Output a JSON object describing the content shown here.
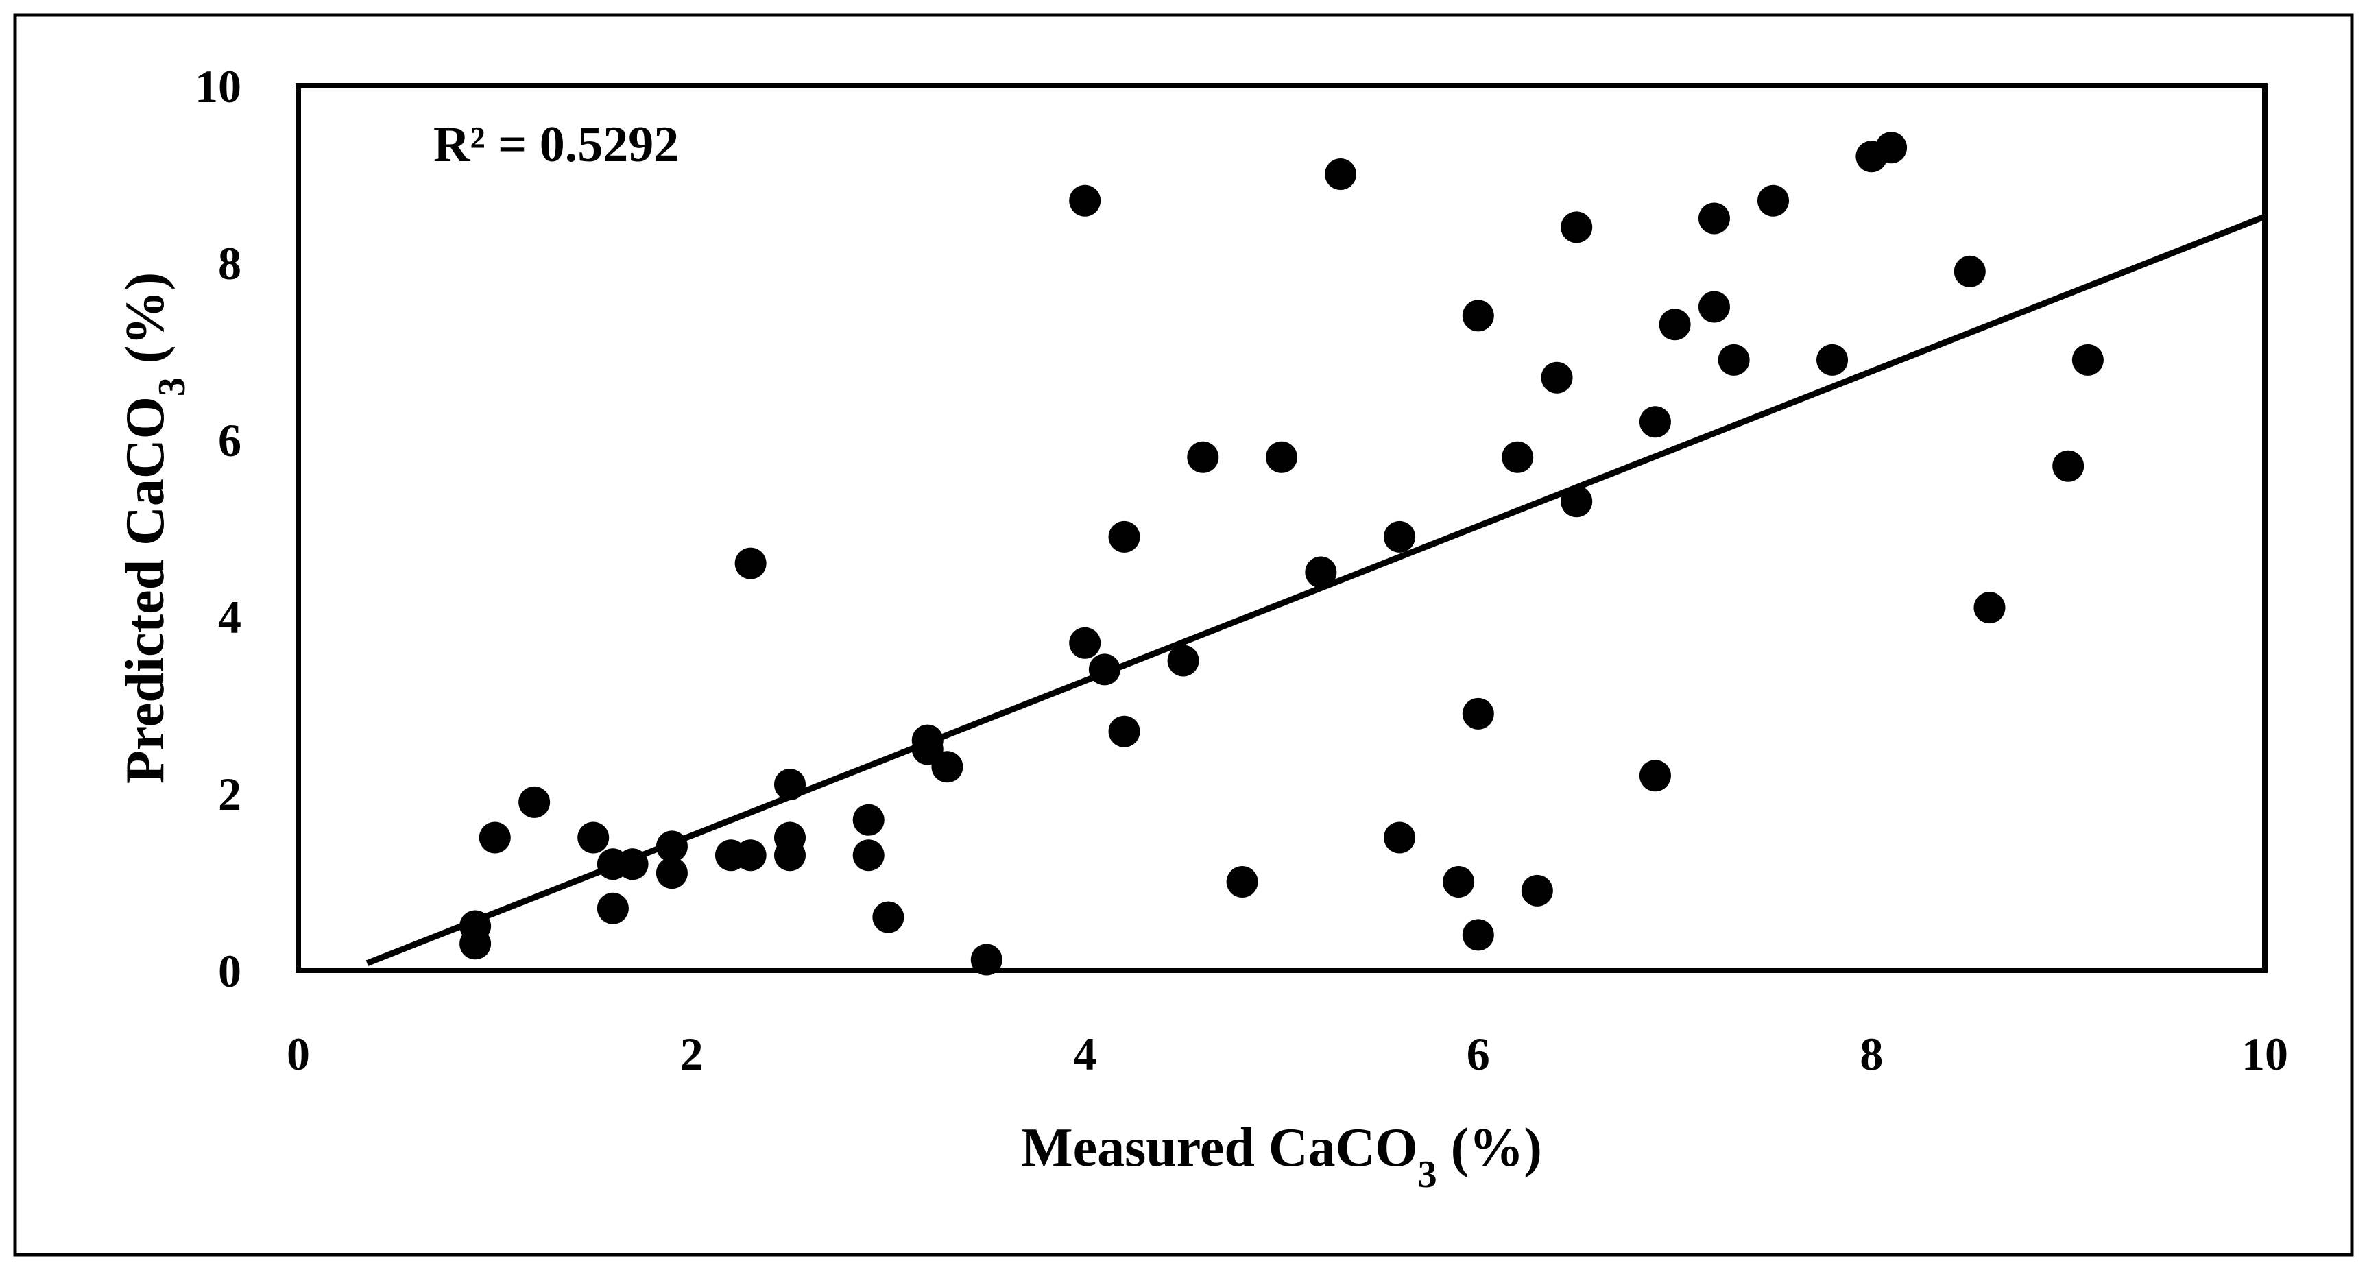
{
  "chart_data": {
    "type": "scatter",
    "title": "",
    "xlabel": {
      "prefix": "Measured CaCO",
      "subscript": "3",
      "suffix": " (%)"
    },
    "ylabel": {
      "prefix": "Predicted CaCO",
      "subscript": "3",
      "suffix": " (%)"
    },
    "xlim": [
      0,
      10
    ],
    "ylim": [
      0,
      10
    ],
    "x_ticks": [
      "0",
      "2",
      "4",
      "6",
      "8",
      "10"
    ],
    "y_ticks": [
      "0",
      "2",
      "4",
      "6",
      "8",
      "10"
    ],
    "grid": false,
    "annotation": "R² = 0.5292",
    "trendline": {
      "x1": 0.35,
      "y1": 0.08,
      "x2": 10,
      "y2": 8.52
    },
    "marker_color": "#000000",
    "points": [
      {
        "x": 0.9,
        "y": 0.5
      },
      {
        "x": 0.9,
        "y": 0.3
      },
      {
        "x": 1.0,
        "y": 1.5
      },
      {
        "x": 1.2,
        "y": 1.9
      },
      {
        "x": 1.5,
        "y": 1.5
      },
      {
        "x": 1.6,
        "y": 1.2
      },
      {
        "x": 1.7,
        "y": 1.2
      },
      {
        "x": 1.6,
        "y": 0.7
      },
      {
        "x": 1.9,
        "y": 1.4
      },
      {
        "x": 1.9,
        "y": 1.1
      },
      {
        "x": 2.2,
        "y": 1.3
      },
      {
        "x": 2.3,
        "y": 1.3
      },
      {
        "x": 2.3,
        "y": 4.6
      },
      {
        "x": 2.5,
        "y": 2.1
      },
      {
        "x": 2.5,
        "y": 1.5
      },
      {
        "x": 2.5,
        "y": 1.3
      },
      {
        "x": 2.9,
        "y": 1.7
      },
      {
        "x": 2.9,
        "y": 1.3
      },
      {
        "x": 3.0,
        "y": 0.6
      },
      {
        "x": 3.2,
        "y": 2.6
      },
      {
        "x": 3.2,
        "y": 2.5
      },
      {
        "x": 3.3,
        "y": 2.3
      },
      {
        "x": 3.5,
        "y": 0.12
      },
      {
        "x": 4.0,
        "y": 8.7
      },
      {
        "x": 4.0,
        "y": 3.7
      },
      {
        "x": 4.1,
        "y": 3.4
      },
      {
        "x": 4.2,
        "y": 4.9
      },
      {
        "x": 4.2,
        "y": 2.7
      },
      {
        "x": 4.5,
        "y": 3.5
      },
      {
        "x": 4.6,
        "y": 5.8
      },
      {
        "x": 4.8,
        "y": 1.0
      },
      {
        "x": 5.0,
        "y": 5.8
      },
      {
        "x": 5.2,
        "y": 4.5
      },
      {
        "x": 5.3,
        "y": 9.0
      },
      {
        "x": 5.6,
        "y": 4.9
      },
      {
        "x": 5.6,
        "y": 1.5
      },
      {
        "x": 5.9,
        "y": 1.0
      },
      {
        "x": 6.0,
        "y": 7.4
      },
      {
        "x": 6.0,
        "y": 2.9
      },
      {
        "x": 6.0,
        "y": 0.4
      },
      {
        "x": 6.2,
        "y": 5.8
      },
      {
        "x": 6.3,
        "y": 0.9
      },
      {
        "x": 6.4,
        "y": 6.7
      },
      {
        "x": 6.5,
        "y": 8.4
      },
      {
        "x": 6.5,
        "y": 5.3
      },
      {
        "x": 6.9,
        "y": 6.2
      },
      {
        "x": 6.9,
        "y": 2.2
      },
      {
        "x": 7.0,
        "y": 7.3
      },
      {
        "x": 7.2,
        "y": 8.5
      },
      {
        "x": 7.2,
        "y": 7.5
      },
      {
        "x": 7.3,
        "y": 6.9
      },
      {
        "x": 7.5,
        "y": 8.7
      },
      {
        "x": 7.8,
        "y": 6.9
      },
      {
        "x": 8.0,
        "y": 9.2
      },
      {
        "x": 8.1,
        "y": 9.3
      },
      {
        "x": 8.5,
        "y": 7.9
      },
      {
        "x": 8.6,
        "y": 4.1
      },
      {
        "x": 9.0,
        "y": 5.7
      },
      {
        "x": 9.1,
        "y": 6.9
      }
    ]
  }
}
